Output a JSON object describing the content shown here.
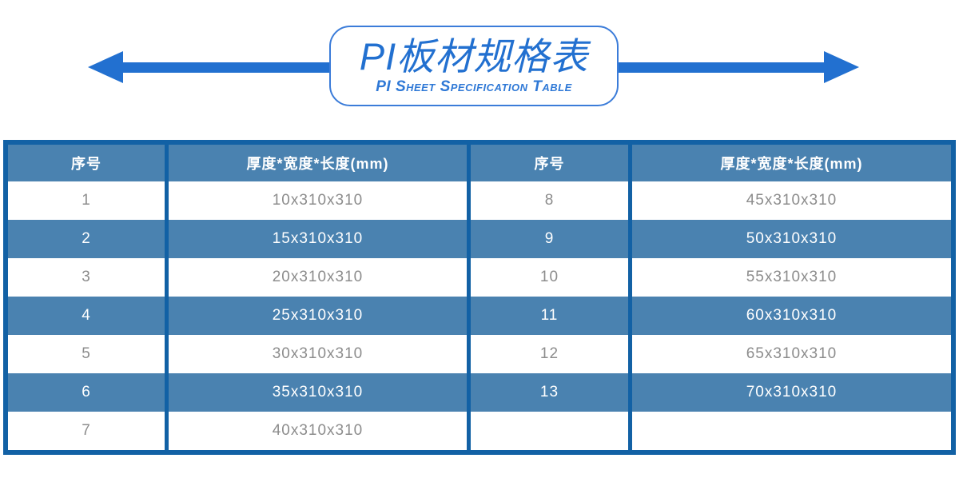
{
  "banner": {
    "title": "PI板材规格表",
    "subtitle": "PI Sheet Specification Table"
  },
  "colors": {
    "accent_blue": "#2270d0",
    "banner_border_blue": "#3b7cd9",
    "table_border_blue": "#1261a5",
    "header_row_blue": "#4a82b0",
    "alt_row_blue": "#4a82b0",
    "white_row_text_gray": "#8c8c8c",
    "page_background": "#ffffff"
  },
  "table": {
    "columns": [
      "序号",
      "厚度*宽度*长度(mm)",
      "序号",
      "厚度*宽度*长度(mm)"
    ],
    "rows": [
      {
        "no_left": "1",
        "spec_left": "10x310x310",
        "no_right": "8",
        "spec_right": "45x310x310"
      },
      {
        "no_left": "2",
        "spec_left": "15x310x310",
        "no_right": "9",
        "spec_right": "50x310x310"
      },
      {
        "no_left": "3",
        "spec_left": "20x310x310",
        "no_right": "10",
        "spec_right": "55x310x310"
      },
      {
        "no_left": "4",
        "spec_left": "25x310x310",
        "no_right": "11",
        "spec_right": "60x310x310"
      },
      {
        "no_left": "5",
        "spec_left": "30x310x310",
        "no_right": "12",
        "spec_right": "65x310x310"
      },
      {
        "no_left": "6",
        "spec_left": "35x310x310",
        "no_right": "13",
        "spec_right": "70x310x310"
      },
      {
        "no_left": "7",
        "spec_left": "40x310x310",
        "no_right": "",
        "spec_right": ""
      }
    ]
  }
}
